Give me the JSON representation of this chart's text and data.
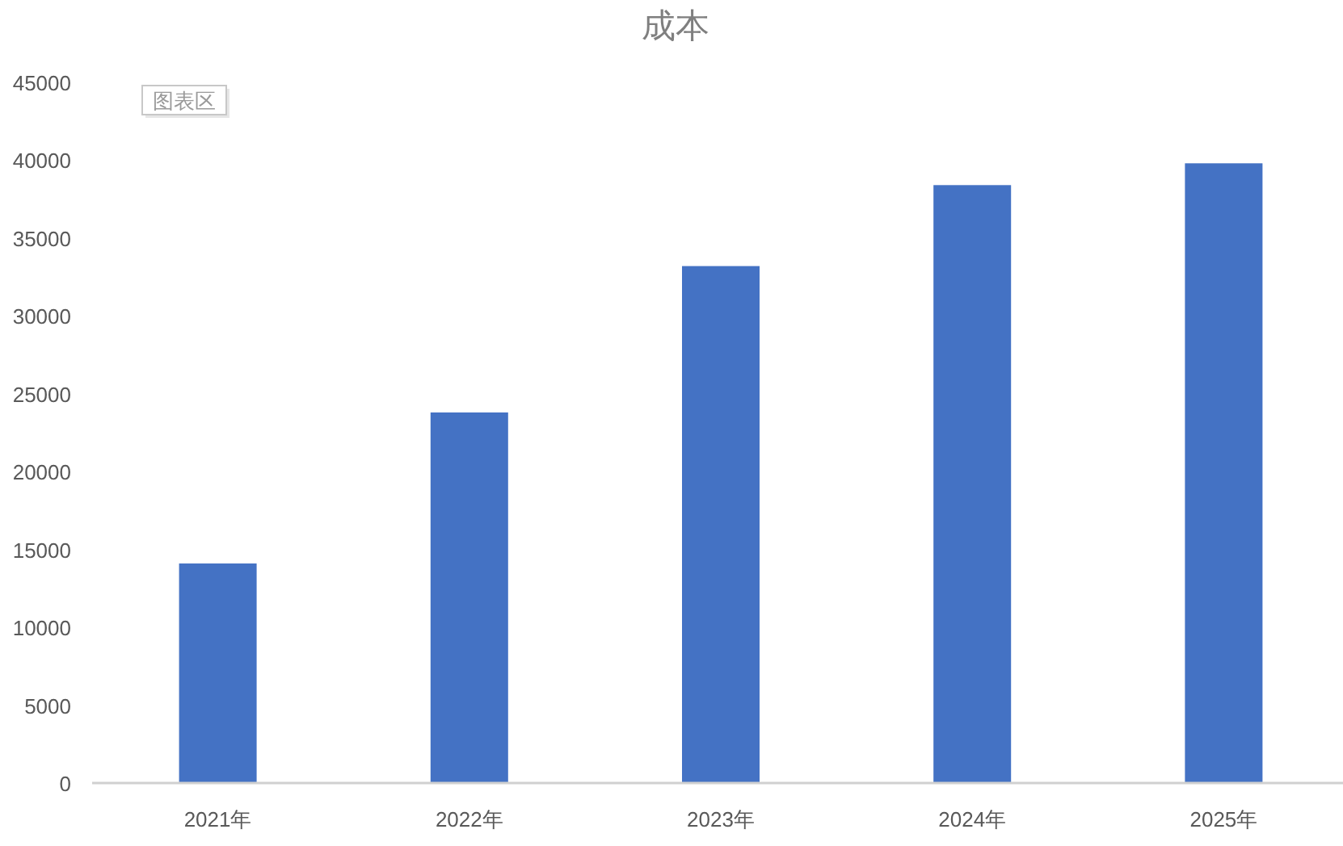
{
  "chart_data": {
    "type": "bar",
    "title": "成本",
    "categories": [
      "2021年",
      "2022年",
      "2023年",
      "2024年",
      "2025年"
    ],
    "values": [
      14100,
      23800,
      33200,
      38400,
      39800
    ],
    "color": "#4472c4",
    "ylim": [
      0,
      45000
    ],
    "yticks": [
      0,
      5000,
      10000,
      15000,
      20000,
      25000,
      30000,
      35000,
      40000,
      45000
    ],
    "annotations": [
      "图表区"
    ]
  }
}
